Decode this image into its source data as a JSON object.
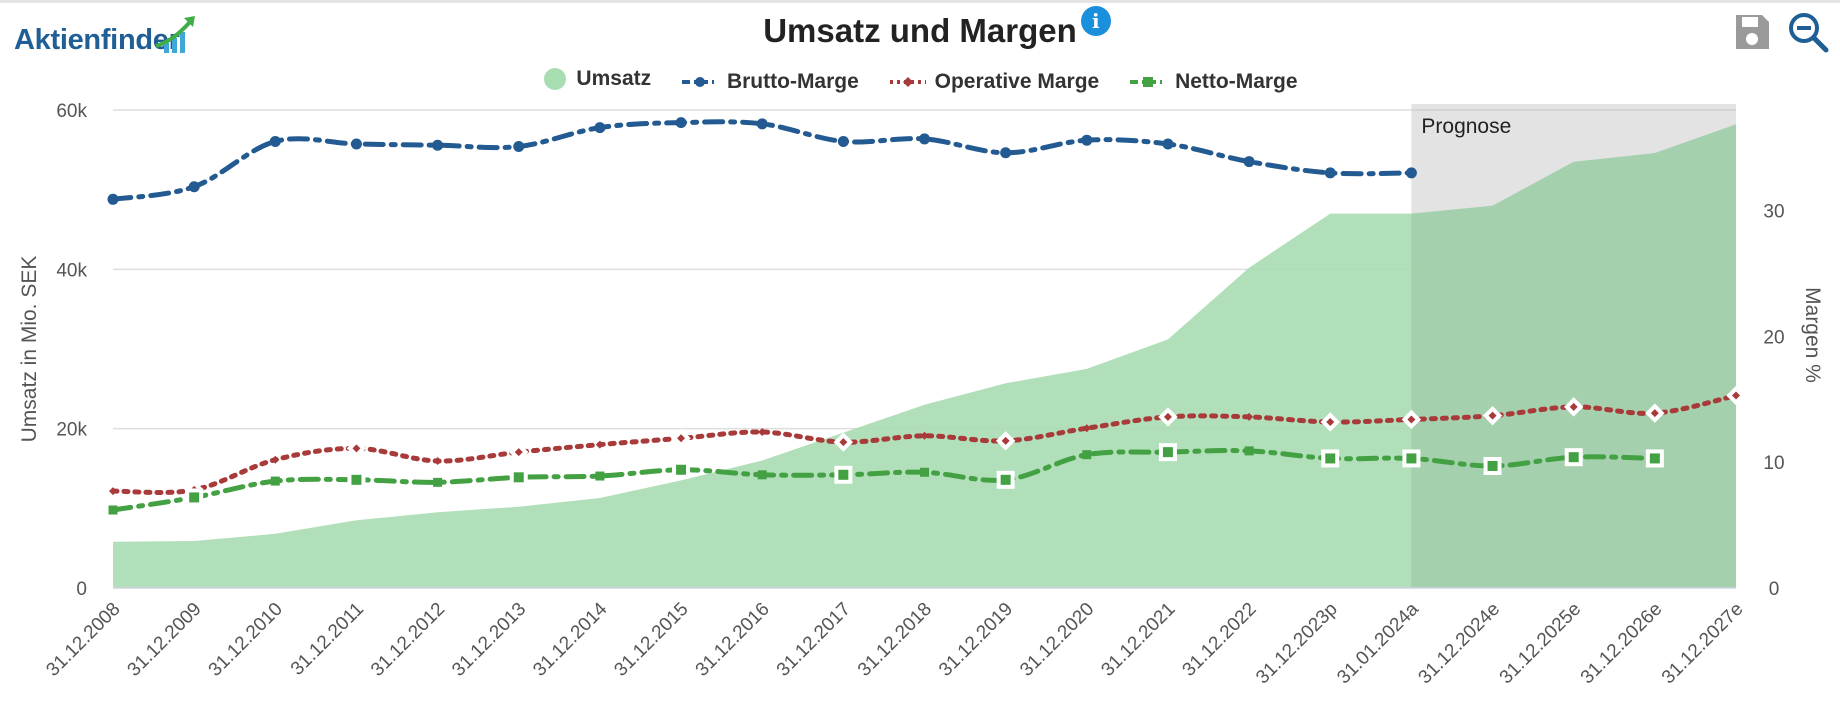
{
  "logo": {
    "text": "Aktienfinder"
  },
  "title": "Umsatz und Margen",
  "toolbar": {
    "save_icon": "save-icon",
    "zoom_icon": "zoom-out-icon",
    "info_icon": "info-icon"
  },
  "colors": {
    "umsatz": "#a8dcb1",
    "brutto": "#235a91",
    "operativ": "#a83a3a",
    "netto": "#43a143",
    "prognose_band": "#f2f2f2",
    "logo": "#1f5f95",
    "info": "#1a8fdc"
  },
  "legend": [
    {
      "key": "umsatz",
      "label": "Umsatz"
    },
    {
      "key": "brutto",
      "label": "Brutto-Marge"
    },
    {
      "key": "operativ",
      "label": "Operative Marge"
    },
    {
      "key": "netto",
      "label": "Netto-Marge"
    }
  ],
  "chart_data": {
    "type": "area",
    "title": "Umsatz und Margen",
    "ylabel": "Umsatz in Mio. SEK",
    "y2label": "Margen %",
    "ylim": [
      0,
      60000
    ],
    "y_ticks": [
      "0",
      "20k",
      "40k",
      "60k"
    ],
    "y_tick_values": [
      0,
      20000,
      40000,
      60000
    ],
    "y2lim": [
      0,
      38
    ],
    "y2_ticks": [
      "0",
      "10",
      "20",
      "30"
    ],
    "y2_tick_values": [
      0,
      10,
      20,
      30
    ],
    "grid": true,
    "legend_position": "top",
    "prognose_label": "Prognose",
    "prognose_start_index": 16,
    "categories": [
      "31.12.2008",
      "31.12.2009",
      "31.12.2010",
      "31.12.2011",
      "31.12.2012",
      "31.12.2013",
      "31.12.2014",
      "31.12.2015",
      "31.12.2016",
      "31.12.2017",
      "31.12.2018",
      "31.12.2019",
      "31.12.2020",
      "31.12.2021",
      "31.12.2022",
      "31.12.2023p",
      "31.01.2024a",
      "31.12.2024e",
      "31.12.2025e",
      "31.12.2026e",
      "31.12.2027e"
    ],
    "series": [
      {
        "name": "Umsatz",
        "type": "area",
        "axis": "left",
        "values": [
          5800,
          5900,
          6800,
          8500,
          9500,
          10200,
          11300,
          13500,
          16000,
          19500,
          23000,
          25700,
          27500,
          31200,
          40200,
          47000,
          47000,
          48000,
          53500,
          54600,
          58200
        ]
      },
      {
        "name": "Brutto-Marge",
        "type": "line",
        "axis": "right",
        "style": "dashdot",
        "values": [
          30.9,
          31.9,
          35.5,
          35.3,
          35.2,
          35.1,
          36.6,
          37.0,
          36.9,
          35.5,
          35.7,
          34.6,
          35.6,
          35.3,
          33.9,
          33.0,
          33.0,
          null,
          null,
          null,
          null
        ]
      },
      {
        "name": "Operative Marge",
        "type": "line",
        "axis": "right",
        "style": "dot",
        "values": [
          7.7,
          7.8,
          10.2,
          11.1,
          10.1,
          10.8,
          11.4,
          11.9,
          12.4,
          11.6,
          12.1,
          11.7,
          12.7,
          13.6,
          13.6,
          13.2,
          13.4,
          13.7,
          14.4,
          13.9,
          15.3
        ]
      },
      {
        "name": "Netto-Marge",
        "type": "line",
        "axis": "right",
        "style": "dashdot",
        "values": [
          6.2,
          7.2,
          8.5,
          8.6,
          8.4,
          8.8,
          8.9,
          9.4,
          9.0,
          9.0,
          9.2,
          8.6,
          10.6,
          10.8,
          10.9,
          10.3,
          10.3,
          9.7,
          10.4,
          10.3,
          null
        ]
      }
    ]
  }
}
